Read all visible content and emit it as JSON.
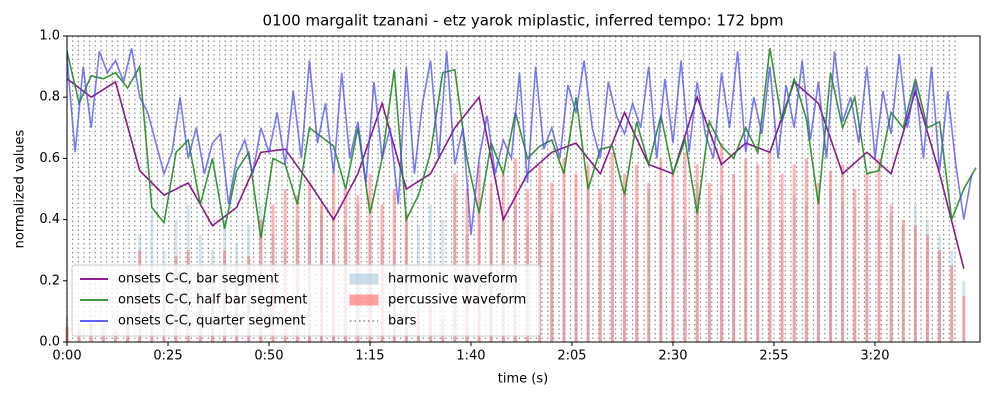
{
  "chart_data": {
    "type": "line",
    "title": "0100 margalit tzanani - etz yarok miplastic, inferred tempo: 172 bpm",
    "xlabel": "time (s)",
    "ylabel": "normalized values",
    "xlim": [
      0,
      226
    ],
    "ylim": [
      0,
      1
    ],
    "xticks": [
      {
        "value": 0,
        "label": "0:00"
      },
      {
        "value": 25,
        "label": "0:25"
      },
      {
        "value": 50,
        "label": "0:50"
      },
      {
        "value": 75,
        "label": "1:15"
      },
      {
        "value": 100,
        "label": "1:40"
      },
      {
        "value": 125,
        "label": "2:05"
      },
      {
        "value": 150,
        "label": "2:30"
      },
      {
        "value": 175,
        "label": "2:55"
      },
      {
        "value": 200,
        "label": "3:20"
      }
    ],
    "yticks": [
      {
        "value": 0,
        "label": "0.0"
      },
      0.2,
      0.4,
      0.6,
      0.8,
      {
        "value": 1,
        "label": "1.0"
      }
    ],
    "legend": "lower left",
    "series": [
      {
        "name": "onsets C-C, bar segment",
        "type": "line",
        "color": "#800080",
        "x": [
          0,
          6,
          12,
          18,
          24,
          30,
          36,
          42,
          48,
          54,
          60,
          66,
          72,
          78,
          84,
          90,
          96,
          102,
          108,
          114,
          120,
          126,
          132,
          138,
          144,
          150,
          156,
          162,
          168,
          174,
          180,
          186,
          192,
          198,
          204,
          210,
          216,
          222
        ],
        "values": [
          0.86,
          0.8,
          0.85,
          0.56,
          0.48,
          0.52,
          0.38,
          0.44,
          0.62,
          0.63,
          0.52,
          0.4,
          0.55,
          0.78,
          0.5,
          0.55,
          0.7,
          0.8,
          0.4,
          0.55,
          0.62,
          0.65,
          0.55,
          0.75,
          0.58,
          0.55,
          0.8,
          0.58,
          0.65,
          0.62,
          0.85,
          0.78,
          0.55,
          0.62,
          0.55,
          0.82,
          0.55,
          0.24
        ]
      },
      {
        "name": "onsets C-C, half bar segment",
        "type": "line",
        "color": "#228b22",
        "x": [
          0,
          3,
          6,
          9,
          12,
          15,
          18,
          21,
          24,
          27,
          30,
          33,
          36,
          39,
          42,
          45,
          48,
          51,
          54,
          57,
          60,
          63,
          66,
          69,
          72,
          75,
          78,
          81,
          84,
          87,
          90,
          93,
          96,
          99,
          102,
          105,
          108,
          111,
          114,
          117,
          120,
          123,
          126,
          129,
          132,
          135,
          138,
          141,
          144,
          147,
          150,
          153,
          156,
          159,
          162,
          165,
          168,
          171,
          174,
          177,
          180,
          183,
          186,
          189,
          192,
          195,
          198,
          201,
          204,
          207,
          210,
          213,
          216,
          219,
          222,
          225
        ],
        "values": [
          0.95,
          0.78,
          0.87,
          0.86,
          0.88,
          0.83,
          0.9,
          0.44,
          0.39,
          0.62,
          0.66,
          0.45,
          0.6,
          0.37,
          0.56,
          0.62,
          0.34,
          0.6,
          0.58,
          0.45,
          0.7,
          0.67,
          0.64,
          0.5,
          0.7,
          0.42,
          0.6,
          0.89,
          0.4,
          0.48,
          0.62,
          0.88,
          0.89,
          0.6,
          0.42,
          0.65,
          0.55,
          0.75,
          0.6,
          0.64,
          0.66,
          0.55,
          0.8,
          0.5,
          0.63,
          0.64,
          0.48,
          0.72,
          0.58,
          0.74,
          0.55,
          0.66,
          0.42,
          0.72,
          0.64,
          0.6,
          0.7,
          0.62,
          0.96,
          0.72,
          0.86,
          0.73,
          0.45,
          0.88,
          0.7,
          0.8,
          0.55,
          0.56,
          0.75,
          0.7,
          0.86,
          0.7,
          0.72,
          0.4,
          0.5,
          0.57
        ]
      },
      {
        "name": "onsets C-C, quarter segment",
        "type": "line",
        "color": "#4c4cf0",
        "x": [
          0,
          2,
          4,
          6,
          8,
          10,
          12,
          14,
          16,
          18,
          20,
          22,
          24,
          26,
          28,
          30,
          32,
          34,
          36,
          38,
          40,
          42,
          44,
          46,
          48,
          50,
          52,
          54,
          56,
          58,
          60,
          62,
          64,
          66,
          68,
          70,
          72,
          74,
          76,
          78,
          80,
          82,
          84,
          86,
          88,
          90,
          92,
          94,
          96,
          98,
          100,
          102,
          104,
          106,
          108,
          110,
          112,
          114,
          116,
          118,
          120,
          122,
          124,
          126,
          128,
          130,
          132,
          134,
          136,
          138,
          140,
          142,
          144,
          146,
          148,
          150,
          152,
          154,
          156,
          158,
          160,
          162,
          164,
          166,
          168,
          170,
          172,
          174,
          176,
          178,
          180,
          182,
          184,
          186,
          188,
          190,
          192,
          194,
          196,
          198,
          200,
          202,
          204,
          206,
          208,
          210,
          212,
          214,
          216,
          218,
          220,
          222,
          224
        ],
        "values": [
          0.93,
          0.62,
          0.9,
          0.7,
          0.95,
          0.88,
          0.92,
          0.85,
          0.96,
          0.8,
          0.75,
          0.65,
          0.55,
          0.62,
          0.8,
          0.6,
          0.7,
          0.55,
          0.65,
          0.68,
          0.45,
          0.6,
          0.66,
          0.55,
          0.7,
          0.62,
          0.75,
          0.58,
          0.82,
          0.6,
          0.92,
          0.65,
          0.78,
          0.55,
          0.88,
          0.6,
          0.72,
          0.52,
          0.85,
          0.6,
          0.7,
          0.45,
          0.9,
          0.55,
          0.78,
          0.92,
          0.6,
          0.95,
          0.58,
          0.7,
          0.35,
          0.6,
          0.74,
          0.55,
          0.66,
          0.6,
          0.88,
          0.52,
          0.9,
          0.63,
          0.7,
          0.6,
          0.84,
          0.75,
          0.92,
          0.7,
          0.6,
          0.85,
          0.74,
          0.68,
          0.78,
          0.7,
          0.9,
          0.6,
          0.86,
          0.65,
          0.92,
          0.62,
          0.85,
          0.68,
          0.6,
          0.88,
          0.7,
          0.95,
          0.62,
          0.8,
          0.68,
          0.9,
          0.6,
          0.84,
          0.7,
          0.92,
          0.66,
          0.85,
          0.6,
          0.95,
          0.72,
          0.8,
          0.65,
          0.9,
          0.6,
          0.82,
          0.68,
          0.94,
          0.7,
          0.85,
          0.6,
          0.9,
          0.56,
          0.82,
          0.58,
          0.4,
          0.55
        ]
      },
      {
        "name": "harmonic waveform",
        "type": "area",
        "color": "#9fc5dc",
        "x": [
          0,
          3,
          6,
          9,
          12,
          15,
          18,
          21,
          24,
          27,
          30,
          33,
          36,
          39,
          42,
          45,
          48,
          51,
          54,
          57,
          60,
          63,
          66,
          69,
          72,
          75,
          78,
          81,
          84,
          87,
          90,
          93,
          96,
          99,
          102,
          105,
          108,
          111,
          114,
          117,
          120,
          123,
          126,
          129,
          132,
          135,
          138,
          141,
          144,
          147,
          150,
          153,
          156,
          159,
          162,
          165,
          168,
          171,
          174,
          177,
          180,
          183,
          186,
          189,
          192,
          195,
          198,
          201,
          204,
          207,
          210,
          213,
          216,
          219,
          222,
          225
        ],
        "values": [
          0.08,
          0.05,
          0.1,
          0.06,
          0.08,
          0.1,
          0.35,
          0.42,
          0.3,
          0.4,
          0.45,
          0.35,
          0.3,
          0.4,
          0.32,
          0.38,
          0.45,
          0.35,
          0.3,
          0.4,
          0.35,
          0.42,
          0.3,
          0.38,
          0.45,
          0.4,
          0.35,
          0.3,
          0.42,
          0.38,
          0.45,
          0.4,
          0.5,
          0.35,
          0.42,
          0.48,
          0.4,
          0.45,
          0.38,
          0.5,
          0.42,
          0.46,
          0.4,
          0.52,
          0.45,
          0.4,
          0.48,
          0.42,
          0.5,
          0.44,
          0.46,
          0.4,
          0.52,
          0.45,
          0.48,
          0.42,
          0.5,
          0.44,
          0.46,
          0.4,
          0.48,
          0.45,
          0.42,
          0.5,
          0.46,
          0.44,
          0.48,
          0.4,
          0.42,
          0.38,
          0.45,
          0.4,
          0.35,
          0.3,
          0.2,
          0.0
        ]
      },
      {
        "name": "percussive waveform",
        "type": "area",
        "color": "#ff5555",
        "x": [
          0,
          3,
          6,
          9,
          12,
          15,
          18,
          21,
          24,
          27,
          30,
          33,
          36,
          39,
          42,
          45,
          48,
          51,
          54,
          57,
          60,
          63,
          66,
          69,
          72,
          75,
          78,
          81,
          84,
          87,
          90,
          93,
          96,
          99,
          102,
          105,
          108,
          111,
          114,
          117,
          120,
          123,
          126,
          129,
          132,
          135,
          138,
          141,
          144,
          147,
          150,
          153,
          156,
          159,
          162,
          165,
          168,
          171,
          174,
          177,
          180,
          183,
          186,
          189,
          192,
          195,
          198,
          201,
          204,
          207,
          210,
          213,
          216,
          219,
          222,
          225
        ],
        "values": [
          0.05,
          0.04,
          0.06,
          0.05,
          0.04,
          0.06,
          0.3,
          0.25,
          0.2,
          0.28,
          0.3,
          0.22,
          0.18,
          0.3,
          0.25,
          0.28,
          0.4,
          0.45,
          0.5,
          0.48,
          0.52,
          0.45,
          0.55,
          0.5,
          0.48,
          0.55,
          0.45,
          0.5,
          0.42,
          0.1,
          0.12,
          0.08,
          0.55,
          0.5,
          0.58,
          0.52,
          0.55,
          0.6,
          0.5,
          0.58,
          0.52,
          0.6,
          0.55,
          0.58,
          0.5,
          0.62,
          0.55,
          0.58,
          0.52,
          0.6,
          0.55,
          0.62,
          0.58,
          0.52,
          0.65,
          0.55,
          0.6,
          0.58,
          0.62,
          0.55,
          0.58,
          0.6,
          0.52,
          0.56,
          0.58,
          0.5,
          0.55,
          0.6,
          0.45,
          0.4,
          0.38,
          0.35,
          0.3,
          0.25,
          0.15,
          0.0
        ]
      },
      {
        "name": "bars",
        "type": "vlines",
        "color": "#888888",
        "x": [
          0,
          1.4,
          2.8,
          4.2,
          5.6,
          7,
          8.4,
          9.8,
          11.2,
          12.6,
          14,
          15.4,
          16.8,
          18.2,
          19.6,
          21,
          22.4,
          23.8,
          25.2,
          26.6,
          28,
          29.4,
          30.8,
          32.2,
          33.6,
          35,
          36.4,
          37.8,
          39.2,
          40.6,
          42,
          43.4,
          44.8,
          46.2,
          47.6,
          49,
          50.4,
          51.8,
          53.2,
          54.6,
          56,
          57.4,
          58.8,
          60.2,
          61.6,
          63,
          64.4,
          65.8,
          67.2,
          68.6,
          70,
          71.4,
          72.8,
          74.2,
          75.6,
          77,
          78.4,
          79.8,
          81.2,
          82.6,
          84,
          85.4,
          86.8,
          88.2,
          89.6,
          91,
          92.4,
          93.8,
          95.2,
          96.6,
          98,
          99.4,
          100.8,
          102.2,
          103.6,
          105,
          106.4,
          107.8,
          109.2,
          110.6,
          112,
          113.4,
          114.8,
          116.2,
          117.6,
          119,
          120.4,
          121.8,
          123.2,
          124.6,
          126,
          127.4,
          128.8,
          130.2,
          131.6,
          133,
          134.4,
          135.8,
          137.2,
          138.6,
          140,
          141.4,
          142.8,
          144.2,
          145.6,
          147,
          148.4,
          149.8,
          151.2,
          152.6,
          154,
          155.4,
          156.8,
          158.2,
          159.6,
          161,
          162.4,
          163.8,
          165.2,
          166.6,
          168,
          169.4,
          170.8,
          172.2,
          173.6,
          175,
          176.4,
          177.8,
          179.2,
          180.6,
          182,
          183.4,
          184.8,
          186.2,
          187.6,
          189,
          190.4,
          191.8,
          193.2,
          194.6,
          196,
          197.4,
          198.8,
          200.2,
          201.6,
          203,
          204.4,
          205.8,
          207.2,
          208.6,
          210,
          211.4,
          212.8,
          214.2,
          215.6,
          217,
          218.4,
          219.8
        ]
      }
    ]
  }
}
